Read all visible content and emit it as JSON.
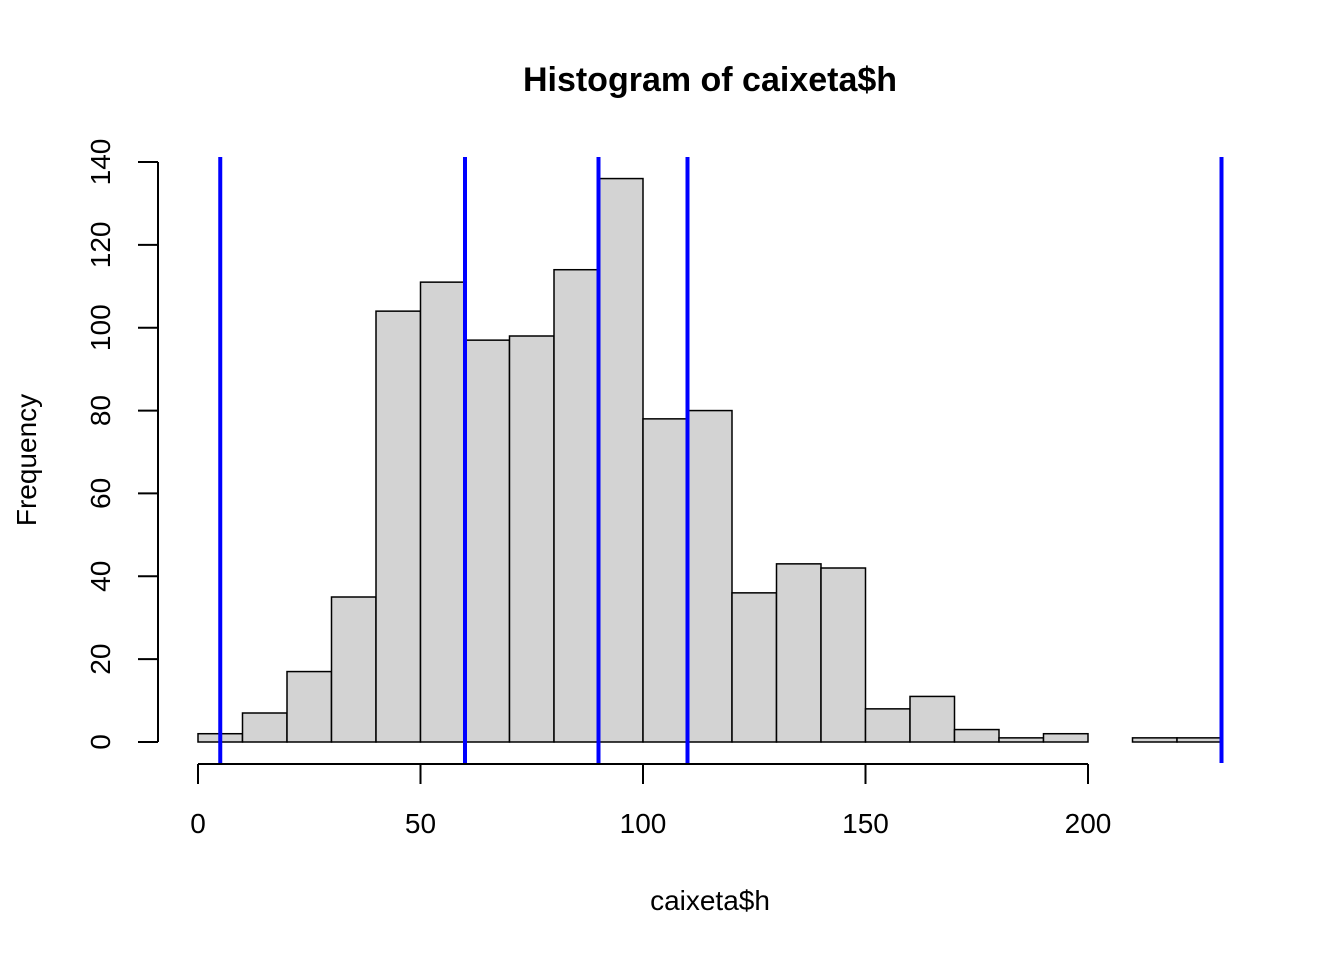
{
  "chart_data": {
    "type": "bar",
    "title": "Histogram of caixeta$h",
    "xlabel": "caixeta$h",
    "ylabel": "Frequency",
    "bin_edges": [
      0,
      10,
      20,
      30,
      40,
      50,
      60,
      70,
      80,
      90,
      100,
      110,
      120,
      130,
      140,
      150,
      160,
      170,
      180,
      190,
      200,
      210,
      220,
      230
    ],
    "values": [
      2,
      7,
      17,
      35,
      104,
      111,
      97,
      98,
      114,
      136,
      78,
      80,
      36,
      43,
      42,
      8,
      11,
      3,
      1,
      2,
      0,
      1,
      1
    ],
    "xlim": [
      0,
      230
    ],
    "ylim": [
      0,
      140
    ],
    "x_ticks": [
      0,
      50,
      100,
      150,
      200
    ],
    "y_ticks": [
      0,
      20,
      40,
      60,
      80,
      100,
      120,
      140
    ],
    "vertical_lines": [
      5,
      60,
      90,
      110,
      230
    ],
    "bar_color": "#d3d3d3",
    "line_color": "#0000ff",
    "grid": false
  }
}
